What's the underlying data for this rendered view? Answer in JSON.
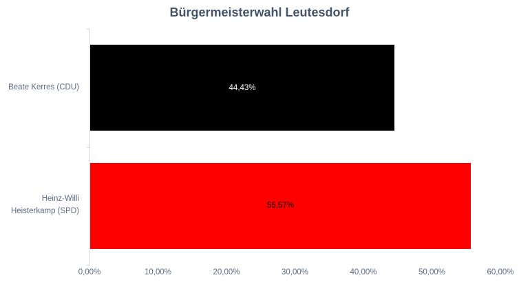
{
  "title": "Bürgermeisterwahl Leutesdorf",
  "colors": {
    "background": "#ffffff",
    "title_text": "#44546a",
    "axis_label_text": "#5a6a84",
    "axis_line": "#d9d9d9",
    "bar_black": "#000000",
    "bar_red": "#ff0000",
    "data_label_on_black": "#ffffff",
    "data_label_on_red": "#000000"
  },
  "chart_data": {
    "type": "bar",
    "orientation": "horizontal",
    "title": "Bürgermeisterwahl Leutesdorf",
    "categories": [
      "Beate Kerres (CDU)",
      "Heinz-Willi Heisterkamp (SPD)"
    ],
    "values": [
      44.43,
      55.57
    ],
    "value_labels": [
      "44,43%",
      "55,57%"
    ],
    "bar_colors": [
      "#000000",
      "#ff0000"
    ],
    "value_label_colors": [
      "#ffffff",
      "#000000"
    ],
    "data_label_position": "center",
    "xlabel": "",
    "ylabel": "",
    "xlim": [
      0,
      60
    ],
    "x_tick_values": [
      0,
      10,
      20,
      30,
      40,
      50,
      60
    ],
    "x_tick_labels": [
      "0,00%",
      "10,00%",
      "20,00%",
      "30,00%",
      "40,00%",
      "50,00%",
      "60,00%"
    ],
    "grid": false,
    "legend": false
  }
}
